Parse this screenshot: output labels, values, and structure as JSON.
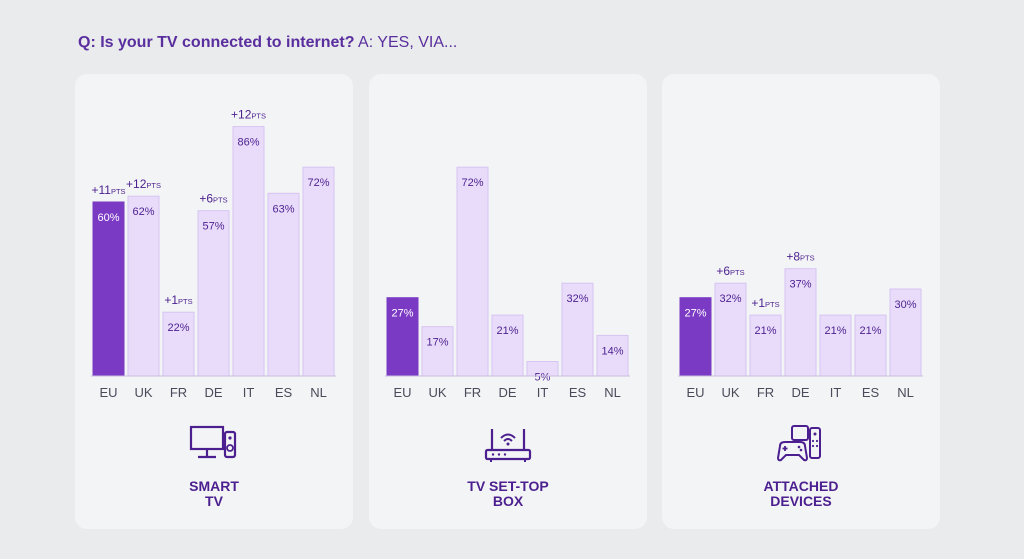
{
  "question": {
    "q": "Q: Is your TV connected to internet?",
    "a": "A: YES, VIA..."
  },
  "colors": {
    "highlight": "#7b3ac4",
    "bar": "#e9dcfa",
    "bar_border": "#d6c4f2",
    "text": "#4b1f8f",
    "axis": "#c9bde0"
  },
  "chart_data": [
    {
      "type": "bar",
      "label": [
        "SMART",
        "TV"
      ],
      "icon": "smart-tv-icon",
      "categories": [
        "EU",
        "UK",
        "FR",
        "DE",
        "IT",
        "ES",
        "NL"
      ],
      "values": [
        60,
        62,
        22,
        57,
        86,
        63,
        72
      ],
      "value_labels": [
        "60%",
        "62%",
        "22%",
        "57%",
        "86%",
        "63%",
        "72%"
      ],
      "changes": [
        "+11",
        "+12",
        "+1",
        "+6",
        "+12",
        "",
        ""
      ],
      "change_unit": "PTS",
      "highlight": "EU",
      "ylim": [
        0,
        100
      ]
    },
    {
      "type": "bar",
      "label": [
        "TV SET-TOP",
        "BOX"
      ],
      "icon": "router-icon",
      "categories": [
        "EU",
        "UK",
        "FR",
        "DE",
        "IT",
        "ES",
        "NL"
      ],
      "values": [
        27,
        17,
        72,
        21,
        5,
        32,
        14
      ],
      "value_labels": [
        "27%",
        "17%",
        "72%",
        "21%",
        "5%",
        "32%",
        "14%"
      ],
      "changes": [
        "",
        "",
        "",
        "",
        "",
        "",
        ""
      ],
      "change_unit": "PTS",
      "highlight": "EU",
      "ylim": [
        0,
        100
      ]
    },
    {
      "type": "bar",
      "label": [
        "ATTACHED",
        "DEVICES"
      ],
      "icon": "devices-icon",
      "categories": [
        "EU",
        "UK",
        "FR",
        "DE",
        "IT",
        "ES",
        "NL"
      ],
      "values": [
        27,
        32,
        21,
        37,
        21,
        21,
        30
      ],
      "value_labels": [
        "27%",
        "32%",
        "21%",
        "37%",
        "21%",
        "21%",
        "30%"
      ],
      "changes": [
        "",
        "+6",
        "+1",
        "+8",
        "",
        "",
        ""
      ],
      "change_unit": "PTS",
      "highlight": "EU",
      "ylim": [
        0,
        100
      ]
    }
  ]
}
